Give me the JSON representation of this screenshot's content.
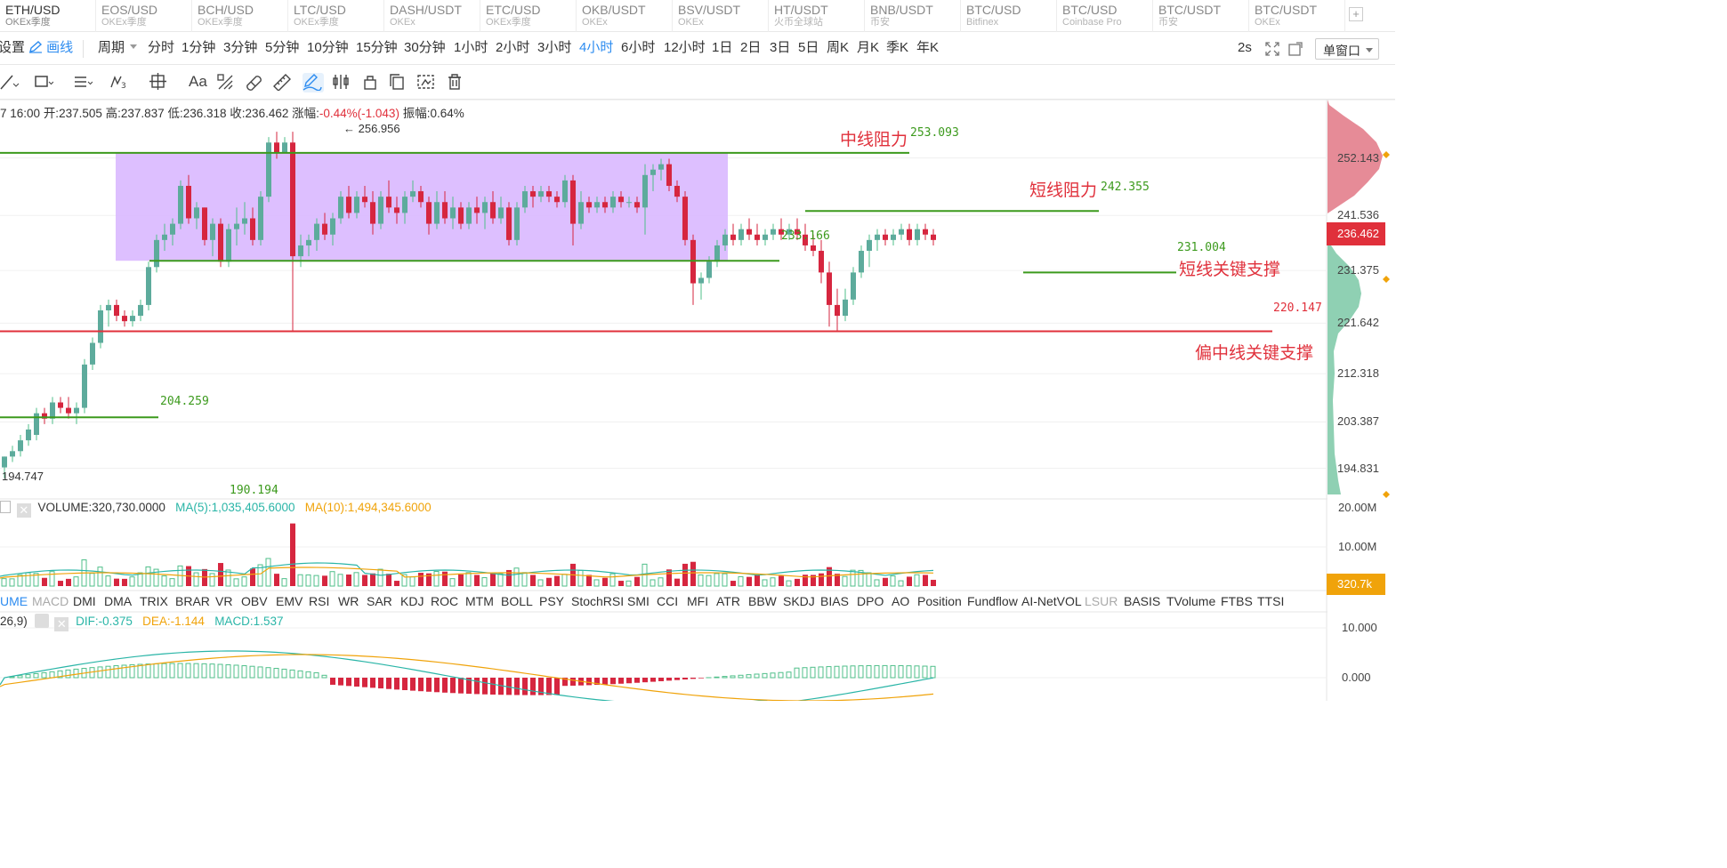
{
  "symbols": [
    {
      "sym": "ETH/USD",
      "ex": "OKEx季度",
      "active": true
    },
    {
      "sym": "EOS/USD",
      "ex": "OKEx季度"
    },
    {
      "sym": "BCH/USD",
      "ex": "OKEx季度"
    },
    {
      "sym": "LTC/USD",
      "ex": "OKEx季度"
    },
    {
      "sym": "DASH/USDT",
      "ex": "OKEx"
    },
    {
      "sym": "ETC/USD",
      "ex": "OKEx季度"
    },
    {
      "sym": "OKB/USDT",
      "ex": "OKEx"
    },
    {
      "sym": "BSV/USDT",
      "ex": "OKEx"
    },
    {
      "sym": "HT/USDT",
      "ex": "火币全球站"
    },
    {
      "sym": "BNB/USDT",
      "ex": "币安"
    },
    {
      "sym": "BTC/USD",
      "ex": "Bitfinex"
    },
    {
      "sym": "BTC/USD",
      "ex": "Coinbase Pro"
    },
    {
      "sym": "BTC/USDT",
      "ex": "币安"
    },
    {
      "sym": "BTC/USDT",
      "ex": "OKEx"
    }
  ],
  "tab_add": "+",
  "toolbar": {
    "settings": "设置",
    "draw": "画线",
    "period_label": "周期",
    "periods": [
      "分时",
      "1分钟",
      "3分钟",
      "5分钟",
      "10分钟",
      "15分钟",
      "30分钟",
      "1小时",
      "2小时",
      "3小时",
      "4小时",
      "6小时",
      "12小时",
      "1日",
      "2日",
      "3日",
      "5日",
      "周K",
      "月K",
      "季K",
      "年K"
    ],
    "active_period": "4小时",
    "refresh": "2s",
    "window": "单窗口"
  },
  "info": {
    "time": "7 16:00",
    "open": "开:237.505",
    "high": "高:237.837",
    "low": "低:236.318",
    "close": "收:236.462",
    "change_label": "涨幅:",
    "change": "-0.44%(-1.043)",
    "amplitude": "振幅:0.64%"
  },
  "annotations": {
    "mid_resist": "中线阻力",
    "short_resist": "短线阻力",
    "short_support": "短线关键支撑",
    "mid_support": "偏中线关键支撑"
  },
  "price_labels": {
    "high_mark": "256.956",
    "mid_resist_val": "253.093",
    "short_resist_val": "242.355",
    "box_bottom": "233.166",
    "short_support_val": "231.004",
    "mid_support_val": "220.147",
    "low_line": "204.259",
    "low_mark": "194.747",
    "bottom_val": "190.194",
    "current_price": "236.462"
  },
  "volume_header": {
    "title": "VOLUME:320,730.0000",
    "ma5": "MA(5):1,035,405.6000",
    "ma10": "MA(10):1,494,345.6000",
    "current": "320.7k"
  },
  "macd_header": {
    "params": "26,9)",
    "dif": "DIF:-0.375",
    "dea": "DEA:-1.144",
    "macd": "MACD:1.537"
  },
  "indicator_tabs": [
    "UME",
    "MACD",
    "DMI",
    "DMA",
    "TRIX",
    "BRAR",
    "VR",
    "OBV",
    "EMV",
    "RSI",
    "WR",
    "SAR",
    "KDJ",
    "ROC",
    "MTM",
    "BOLL",
    "PSY",
    "StochRSI",
    "SMI",
    "CCI",
    "MFI",
    "ATR",
    "BBW",
    "SKDJ",
    "BIAS",
    "DPO",
    "AO",
    "Position",
    "Fundflow",
    "AI-NetVOL",
    "LSUR",
    "BASIS",
    "TVolume",
    "FTBS",
    "TTSI"
  ],
  "colors": {
    "up": "#4fbf8a",
    "down": "#d6263f",
    "accent": "#2d8cf0",
    "box": "#d9b8ff"
  },
  "chart_data": {
    "type": "candlestick",
    "price_axis": {
      "ticks": [
        "252.143",
        "241.536",
        "231.375",
        "221.642",
        "212.318",
        "203.387",
        "194.831"
      ],
      "range": [
        190,
        258
      ]
    },
    "volume_axis": {
      "ticks": [
        "20.00M",
        "10.00M"
      ],
      "range": [
        0,
        22
      ]
    },
    "macd_axis": {
      "ticks": [
        "10.000",
        "0.000"
      ]
    },
    "horizontal_lines": [
      {
        "value": 253.093,
        "color": "#3c9a1d"
      },
      {
        "value": 233.166,
        "color": "#3c9a1d"
      },
      {
        "value": 242.355,
        "color": "#3c9a1d"
      },
      {
        "value": 231.004,
        "color": "#3c9a1d"
      },
      {
        "value": 220.147,
        "color": "#e0303b"
      },
      {
        "value": 204.259,
        "color": "#3c9a1d"
      }
    ],
    "candles": [
      [
        195,
        197,
        193,
        197
      ],
      [
        197,
        199,
        196,
        198
      ],
      [
        198,
        201,
        197,
        200
      ],
      [
        200,
        203,
        199,
        202
      ],
      [
        201,
        206,
        200,
        205
      ],
      [
        205,
        206,
        203,
        204
      ],
      [
        204,
        208,
        203,
        207
      ],
      [
        207,
        208,
        205,
        206
      ],
      [
        206,
        208,
        204,
        205
      ],
      [
        205,
        207,
        203,
        206
      ],
      [
        206,
        215,
        205,
        214
      ],
      [
        214,
        219,
        213,
        218
      ],
      [
        218,
        225,
        217,
        224
      ],
      [
        224,
        226,
        221,
        225
      ],
      [
        225,
        226,
        222,
        223
      ],
      [
        223,
        224,
        221,
        222
      ],
      [
        222,
        224,
        221,
        223
      ],
      [
        223,
        226,
        222,
        225
      ],
      [
        225,
        233,
        224,
        232
      ],
      [
        232,
        238,
        231,
        237
      ],
      [
        237,
        240,
        235,
        238
      ],
      [
        238,
        241,
        236,
        240
      ],
      [
        240,
        248,
        239,
        247
      ],
      [
        247,
        249,
        240,
        241
      ],
      [
        241,
        244,
        239,
        243
      ],
      [
        243,
        243,
        236,
        237
      ],
      [
        237,
        241,
        234,
        240
      ],
      [
        240,
        241,
        232,
        233
      ],
      [
        233,
        240,
        232,
        239
      ],
      [
        239,
        243,
        236,
        240
      ],
      [
        240,
        244,
        238,
        241
      ],
      [
        241,
        243,
        236,
        237
      ],
      [
        237,
        246,
        236,
        245
      ],
      [
        245,
        256,
        244,
        255
      ],
      [
        255,
        257,
        252,
        253
      ],
      [
        253,
        256,
        253,
        255
      ],
      [
        255,
        257,
        220,
        234
      ],
      [
        234,
        238,
        232,
        236
      ],
      [
        236,
        238,
        234,
        237
      ],
      [
        237,
        241,
        235,
        240
      ],
      [
        240,
        242,
        237,
        238
      ],
      [
        238,
        242,
        236,
        241
      ],
      [
        241,
        246,
        240,
        245
      ],
      [
        245,
        247,
        241,
        242
      ],
      [
        242,
        246,
        241,
        245
      ],
      [
        245,
        247,
        243,
        244
      ],
      [
        244,
        246,
        238,
        240
      ],
      [
        240,
        246,
        239,
        245
      ],
      [
        245,
        248,
        242,
        243
      ],
      [
        243,
        245,
        240,
        242
      ],
      [
        242,
        246,
        240,
        245
      ],
      [
        245,
        248,
        244,
        246
      ],
      [
        246,
        247,
        243,
        244
      ],
      [
        244,
        245,
        238,
        240
      ],
      [
        240,
        246,
        239,
        244
      ],
      [
        244,
        246,
        240,
        241
      ],
      [
        241,
        245,
        239,
        243
      ],
      [
        243,
        244,
        239,
        240
      ],
      [
        240,
        244,
        239,
        243
      ],
      [
        243,
        245,
        240,
        242
      ],
      [
        242,
        245,
        239,
        244
      ],
      [
        244,
        246,
        240,
        241
      ],
      [
        241,
        245,
        240,
        243
      ],
      [
        243,
        244,
        236,
        237
      ],
      [
        237,
        244,
        236,
        243
      ],
      [
        243,
        247,
        242,
        246
      ],
      [
        246,
        247,
        243,
        245
      ],
      [
        245,
        247,
        244,
        246
      ],
      [
        246,
        247,
        244,
        245
      ],
      [
        245,
        246,
        243,
        244
      ],
      [
        244,
        249,
        243,
        248
      ],
      [
        248,
        249,
        236,
        240
      ],
      [
        240,
        246,
        239,
        244
      ],
      [
        244,
        245,
        242,
        243
      ],
      [
        243,
        245,
        242,
        244
      ],
      [
        244,
        245,
        242,
        243
      ],
      [
        243,
        246,
        242,
        245
      ],
      [
        245,
        246,
        243,
        244
      ],
      [
        244,
        245,
        243,
        244
      ],
      [
        244,
        245,
        242,
        243
      ],
      [
        243,
        251,
        238,
        249
      ],
      [
        249,
        251,
        246,
        250
      ],
      [
        250,
        252,
        248,
        251
      ],
      [
        251,
        252,
        246,
        247
      ],
      [
        247,
        248,
        244,
        245
      ],
      [
        245,
        246,
        236,
        237
      ],
      [
        237,
        238,
        225,
        229
      ],
      [
        229,
        231,
        226,
        230
      ],
      [
        230,
        234,
        229,
        233
      ],
      [
        233,
        237,
        232,
        236
      ],
      [
        236,
        239,
        235,
        238
      ],
      [
        238,
        240,
        236,
        237
      ],
      [
        237,
        240,
        236,
        239
      ],
      [
        239,
        241,
        237,
        238
      ],
      [
        238,
        240,
        236,
        237
      ],
      [
        237,
        239,
        236,
        238
      ],
      [
        238,
        240,
        237,
        239
      ],
      [
        239,
        241,
        237,
        238
      ],
      [
        238,
        240,
        237,
        239
      ],
      [
        239,
        241,
        237,
        238
      ],
      [
        238,
        240,
        235,
        236
      ],
      [
        236,
        238,
        234,
        235
      ],
      [
        235,
        237,
        229,
        231
      ],
      [
        231,
        233,
        221,
        225
      ],
      [
        225,
        228,
        220,
        223
      ],
      [
        223,
        228,
        222,
        226
      ],
      [
        226,
        232,
        225,
        231
      ],
      [
        231,
        236,
        230,
        235
      ],
      [
        235,
        238,
        232,
        237
      ],
      [
        237,
        239,
        235,
        238
      ],
      [
        238,
        239,
        236,
        237
      ],
      [
        237,
        239,
        236,
        238
      ],
      [
        238,
        240,
        237,
        239
      ],
      [
        239,
        240,
        236,
        237
      ],
      [
        237,
        240,
        236,
        239
      ],
      [
        239,
        240,
        237,
        238
      ],
      [
        238,
        239,
        236,
        237
      ]
    ]
  }
}
